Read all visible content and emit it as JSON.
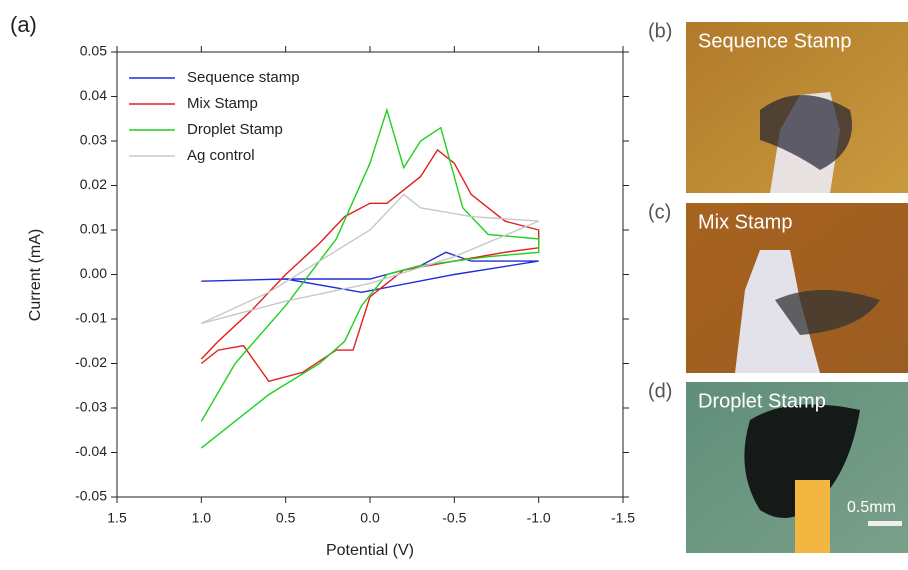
{
  "panel_label": "(a)",
  "chart_data": {
    "type": "line",
    "xlabel": "Potential (V)",
    "ylabel": "Current (mA)",
    "xlim": [
      1.5,
      -1.5
    ],
    "ylim": [
      -0.05,
      0.05
    ],
    "xticks": [
      1.5,
      {
        "value": 1.0,
        "label": "1.0"
      },
      0.5,
      {
        "value": 0,
        "label": "0.0"
      },
      -0.5,
      {
        "value": -1.0,
        "label": "-1.0"
      },
      -1.5
    ],
    "yticks": [
      -0.05,
      -0.04,
      -0.03,
      -0.02,
      -0.01,
      {
        "value": 0,
        "label": "0.00"
      },
      0.01,
      0.02,
      0.03,
      0.04,
      0.05
    ],
    "legend": "upper left",
    "series": [
      {
        "name": "Sequence stamp",
        "color": "#1f2fd6",
        "x": [
          1.0,
          0.5,
          0.05,
          -0.5,
          -1.0,
          -1.0,
          -0.6,
          -0.45,
          -0.3,
          0.0,
          0.5,
          1.0
        ],
        "values": [
          -0.0015,
          -0.001,
          -0.004,
          0.0,
          0.003,
          0.003,
          0.003,
          0.005,
          0.002,
          -0.001,
          -0.001,
          -0.0015
        ]
      },
      {
        "name": "Mix Stamp",
        "color": "#e0201f",
        "x": [
          1.0,
          0.9,
          0.75,
          0.6,
          0.4,
          0.2,
          0.1,
          0.0,
          -0.2,
          -0.5,
          -0.8,
          -1.0,
          -1.0,
          -0.8,
          -0.6,
          -0.5,
          -0.4,
          -0.3,
          -0.1,
          0.0,
          0.15,
          0.3,
          0.5,
          0.7,
          0.9,
          1.0
        ],
        "values": [
          -0.02,
          -0.017,
          -0.016,
          -0.024,
          -0.022,
          -0.017,
          -0.017,
          -0.005,
          0.001,
          0.003,
          0.005,
          0.006,
          0.01,
          0.012,
          0.018,
          0.025,
          0.028,
          0.022,
          0.016,
          0.016,
          0.013,
          0.007,
          0.0,
          -0.008,
          -0.015,
          -0.019
        ]
      },
      {
        "name": "Droplet Stamp",
        "color": "#1fd01f",
        "x": [
          1.0,
          0.6,
          0.3,
          0.15,
          0.05,
          -0.1,
          -0.3,
          -0.7,
          -1.0,
          -1.0,
          -0.7,
          -0.55,
          -0.42,
          -0.3,
          -0.2,
          -0.1,
          0.0,
          0.2,
          0.5,
          0.8,
          1.0
        ],
        "values": [
          -0.039,
          -0.027,
          -0.02,
          -0.015,
          -0.007,
          0.0,
          0.002,
          0.004,
          0.005,
          0.008,
          0.009,
          0.015,
          0.033,
          0.03,
          0.024,
          0.037,
          0.025,
          0.008,
          -0.007,
          -0.02,
          -0.033
        ]
      },
      {
        "name": "Ag control",
        "color": "#c8c8c8",
        "x": [
          1.0,
          0.5,
          0.0,
          -0.5,
          -1.0,
          -0.6,
          -0.3,
          -0.2,
          0.0,
          0.3,
          0.6,
          1.0
        ],
        "values": [
          -0.011,
          -0.006,
          -0.002,
          0.004,
          0.012,
          0.013,
          0.015,
          0.018,
          0.01,
          0.003,
          -0.004,
          -0.011
        ]
      }
    ]
  },
  "panels": [
    {
      "label": "(b)",
      "caption": "Sequence Stamp"
    },
    {
      "label": "(c)",
      "caption": "Mix Stamp"
    },
    {
      "label": "(d)",
      "caption": "Droplet Stamp"
    }
  ],
  "scale_bar": "0.5mm"
}
